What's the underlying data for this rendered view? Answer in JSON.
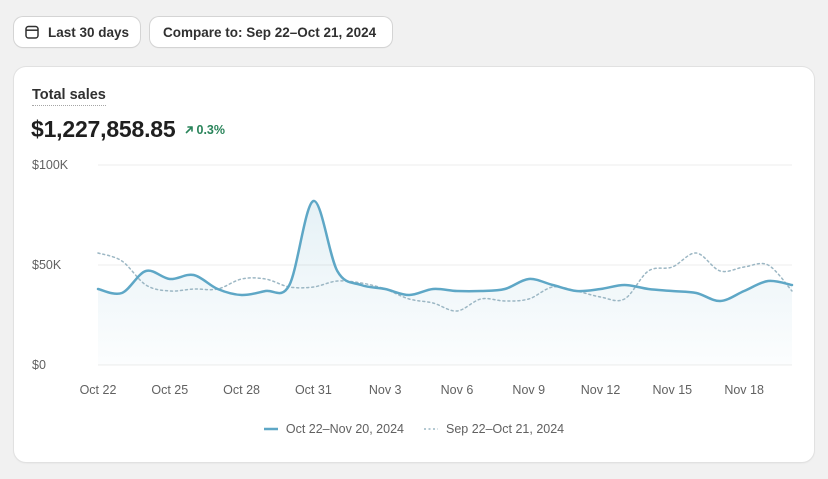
{
  "controls": {
    "date_range_label": "Last 30 days",
    "compare_label": "Compare to: Sep 22–Oct 21, 2024"
  },
  "metric": {
    "title": "Total sales",
    "value": "$1,227,858.85",
    "change": "0.3%",
    "change_direction": "up"
  },
  "colors": {
    "primary_series": "#5ea7c6",
    "comparison_series": "#9cb7c4",
    "positive_change": "#29845a",
    "gridline": "#ececec"
  },
  "icons": {
    "date_range": "calendar-icon",
    "change": "arrow-up-right-icon"
  },
  "chart_data": {
    "type": "area",
    "title": "",
    "xlabel": "",
    "ylabel": "",
    "ylim": [
      0,
      100000
    ],
    "ytick_labels": [
      "$0",
      "$50K",
      "$100K"
    ],
    "ytick_values": [
      0,
      50000,
      100000
    ],
    "grid": true,
    "legend_position": "bottom-center",
    "xtick_labels": [
      "Oct 22",
      "Oct 25",
      "Oct 28",
      "Oct 31",
      "Nov 3",
      "Nov 6",
      "Nov 9",
      "Nov 12",
      "Nov 15",
      "Nov 18"
    ],
    "xtick_indices": [
      0,
      3,
      6,
      9,
      12,
      15,
      18,
      21,
      24,
      27
    ],
    "series": [
      {
        "name": "Oct 22–Nov 20, 2024",
        "style": "solid",
        "values": [
          38000,
          36000,
          47000,
          43000,
          45000,
          38000,
          35000,
          37000,
          40000,
          82000,
          47000,
          40000,
          38000,
          35000,
          38000,
          37000,
          37000,
          38000,
          43000,
          40000,
          37000,
          38000,
          40000,
          38000,
          37000,
          36000,
          32000,
          37000,
          42000,
          40000
        ]
      },
      {
        "name": "Sep 22–Oct 21, 2024",
        "style": "dotted",
        "values": [
          56000,
          52000,
          40000,
          37000,
          38000,
          38000,
          43000,
          43000,
          39000,
          39000,
          42000,
          41000,
          38000,
          33000,
          31000,
          27000,
          33000,
          32000,
          33000,
          39000,
          37000,
          34000,
          33000,
          47000,
          49000,
          56000,
          47000,
          49000,
          50000,
          37000
        ]
      }
    ]
  }
}
